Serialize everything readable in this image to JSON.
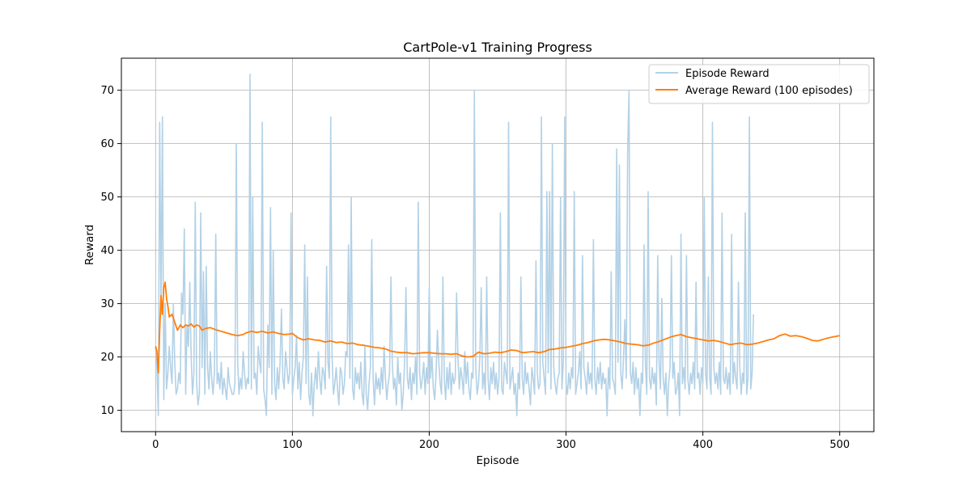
{
  "chart_data": {
    "type": "line",
    "title": "CartPole-v1 Training Progress",
    "xlabel": "Episode",
    "ylabel": "Reward",
    "xlim": [
      -25,
      525
    ],
    "ylim": [
      6,
      76
    ],
    "xticks": [
      0,
      100,
      200,
      300,
      400,
      500
    ],
    "yticks": [
      10,
      20,
      30,
      40,
      50,
      60,
      70
    ],
    "grid": true,
    "legend_position": "top-right",
    "series": [
      {
        "name": "Episode Reward",
        "color": "#b3d1e6",
        "x_start": 0,
        "values": [
          22,
          18,
          9,
          64,
          28,
          65,
          12,
          30,
          14,
          17,
          22,
          18,
          15,
          30,
          19,
          13,
          14,
          17,
          15,
          32,
          28,
          44,
          13,
          26,
          22,
          34,
          20,
          13,
          17,
          49,
          15,
          11,
          13,
          47,
          18,
          36,
          13,
          37,
          18,
          14,
          21,
          16,
          13,
          17,
          43,
          15,
          17,
          14,
          19,
          13,
          16,
          14,
          12,
          18,
          15,
          14,
          13,
          13,
          15,
          60,
          19,
          13,
          16,
          14,
          21,
          17,
          14,
          16,
          15,
          73,
          14,
          50,
          16,
          17,
          13,
          22,
          19,
          17,
          64,
          14,
          12,
          9,
          26,
          18,
          48,
          13,
          40,
          15,
          12,
          18,
          14,
          19,
          29,
          16,
          14,
          21,
          18,
          15,
          17,
          47,
          13,
          16,
          18,
          24,
          14,
          19,
          12,
          17,
          20,
          41,
          15,
          35,
          13,
          11,
          17,
          9,
          15,
          18,
          14,
          21,
          16,
          13,
          18,
          17,
          14,
          37,
          19,
          16,
          65,
          20,
          13,
          15,
          18,
          14,
          11,
          18,
          17,
          13,
          15,
          21,
          20,
          41,
          16,
          50,
          14,
          12,
          18,
          15,
          17,
          14,
          19,
          13,
          11,
          22,
          13,
          10,
          15,
          18,
          42,
          16,
          11,
          17,
          14,
          16,
          13,
          18,
          14,
          22,
          16,
          12,
          15,
          17,
          35,
          19,
          14,
          16,
          11,
          20,
          15,
          17,
          10,
          13,
          19,
          33,
          16,
          14,
          18,
          12,
          17,
          15,
          20,
          13,
          49,
          17,
          14,
          16,
          19,
          13,
          18,
          15,
          33,
          16,
          20,
          14,
          12,
          17,
          25,
          19,
          15,
          13,
          35,
          16,
          12,
          18,
          14,
          19,
          13,
          17,
          15,
          16,
          32,
          20,
          14,
          18,
          16,
          13,
          21,
          15,
          19,
          14,
          12,
          17,
          16,
          70,
          18,
          13,
          15,
          20,
          33,
          14,
          17,
          13,
          35,
          16,
          12,
          18,
          15,
          19,
          14,
          17,
          13,
          16,
          47,
          14,
          13,
          19,
          17,
          15,
          64,
          14,
          16,
          18,
          13,
          15,
          9,
          17,
          14,
          35,
          16,
          13,
          19,
          15,
          17,
          14,
          11,
          18,
          16,
          13,
          38,
          17,
          14,
          15,
          65,
          19,
          16,
          13,
          51,
          17,
          51,
          14,
          60,
          18,
          15,
          13,
          16,
          17,
          50,
          14,
          19,
          65,
          15,
          13,
          17,
          14,
          18,
          16,
          51,
          13,
          15,
          17,
          21,
          14,
          39,
          18,
          16,
          13,
          19,
          15,
          17,
          14,
          42,
          16,
          13,
          18,
          15,
          19,
          14,
          17,
          15,
          16,
          9,
          18,
          14,
          36,
          16,
          15,
          13,
          59,
          19,
          56,
          17,
          14,
          20,
          27,
          16,
          58,
          70,
          17,
          15,
          19,
          13,
          18,
          14,
          16,
          9,
          17,
          15,
          41,
          19,
          13,
          51,
          16,
          14,
          18,
          15,
          17,
          11,
          39,
          19,
          14,
          31,
          16,
          13,
          17,
          9,
          15,
          18,
          39,
          16,
          19,
          13,
          14,
          17,
          9,
          43,
          15,
          18,
          14,
          39,
          16,
          13,
          17,
          15,
          19,
          14,
          34,
          16,
          17,
          13,
          18,
          15,
          50,
          17,
          14,
          35,
          16,
          13,
          64,
          18,
          15,
          17,
          14,
          19,
          13,
          47,
          16,
          15,
          18,
          14,
          17,
          13,
          43,
          15,
          19,
          16,
          14,
          34,
          18,
          13,
          17,
          15,
          47,
          13,
          16,
          65,
          14,
          17,
          28
        ]
      },
      {
        "name": "Average Reward (100 episodes)",
        "color": "#ff7f0e",
        "points": [
          [
            0,
            22
          ],
          [
            1,
            21
          ],
          [
            2,
            17
          ],
          [
            3,
            25
          ],
          [
            4,
            31.5
          ],
          [
            5,
            28
          ],
          [
            6,
            33
          ],
          [
            7,
            34
          ],
          [
            8,
            31
          ],
          [
            9,
            29.5
          ],
          [
            10,
            27.5
          ],
          [
            12,
            28
          ],
          [
            14,
            26.5
          ],
          [
            16,
            25
          ],
          [
            18,
            26
          ],
          [
            20,
            25.5
          ],
          [
            22,
            26
          ],
          [
            24,
            25.8
          ],
          [
            26,
            26.2
          ],
          [
            28,
            25.6
          ],
          [
            30,
            26
          ],
          [
            32,
            25.8
          ],
          [
            34,
            25
          ],
          [
            36,
            25.3
          ],
          [
            40,
            25.5
          ],
          [
            44,
            25.1
          ],
          [
            48,
            24.8
          ],
          [
            52,
            24.5
          ],
          [
            56,
            24.2
          ],
          [
            60,
            24
          ],
          [
            64,
            24.2
          ],
          [
            66,
            24.5
          ],
          [
            70,
            24.8
          ],
          [
            74,
            24.6
          ],
          [
            78,
            24.8
          ],
          [
            82,
            24.5
          ],
          [
            86,
            24.7
          ],
          [
            90,
            24.4
          ],
          [
            94,
            24.2
          ],
          [
            98,
            24.3
          ],
          [
            100,
            24.4
          ],
          [
            104,
            23.6
          ],
          [
            108,
            23.2
          ],
          [
            112,
            23.4
          ],
          [
            116,
            23.2
          ],
          [
            120,
            23.1
          ],
          [
            124,
            22.8
          ],
          [
            128,
            23
          ],
          [
            132,
            22.7
          ],
          [
            136,
            22.8
          ],
          [
            140,
            22.5
          ],
          [
            144,
            22.6
          ],
          [
            148,
            22.3
          ],
          [
            152,
            22.2
          ],
          [
            156,
            22
          ],
          [
            160,
            21.8
          ],
          [
            164,
            21.7
          ],
          [
            168,
            21.5
          ],
          [
            172,
            21.1
          ],
          [
            176,
            20.9
          ],
          [
            180,
            20.8
          ],
          [
            184,
            20.8
          ],
          [
            188,
            20.6
          ],
          [
            192,
            20.7
          ],
          [
            196,
            20.8
          ],
          [
            200,
            20.8
          ],
          [
            204,
            20.7
          ],
          [
            208,
            20.6
          ],
          [
            212,
            20.6
          ],
          [
            216,
            20.5
          ],
          [
            220,
            20.6
          ],
          [
            224,
            20.2
          ],
          [
            228,
            20
          ],
          [
            232,
            20.1
          ],
          [
            236,
            20.9
          ],
          [
            240,
            20.6
          ],
          [
            244,
            20.7
          ],
          [
            248,
            20.9
          ],
          [
            252,
            20.8
          ],
          [
            256,
            21
          ],
          [
            260,
            21.3
          ],
          [
            264,
            21.2
          ],
          [
            268,
            20.8
          ],
          [
            272,
            20.9
          ],
          [
            276,
            21
          ],
          [
            280,
            20.8
          ],
          [
            284,
            21
          ],
          [
            288,
            21.4
          ],
          [
            292,
            21.5
          ],
          [
            296,
            21.7
          ],
          [
            300,
            21.8
          ],
          [
            304,
            22
          ],
          [
            308,
            22.2
          ],
          [
            312,
            22.5
          ],
          [
            316,
            22.7
          ],
          [
            320,
            23
          ],
          [
            324,
            23.2
          ],
          [
            328,
            23.3
          ],
          [
            332,
            23.2
          ],
          [
            336,
            23
          ],
          [
            340,
            22.8
          ],
          [
            344,
            22.5
          ],
          [
            348,
            22.4
          ],
          [
            352,
            22.3
          ],
          [
            356,
            22.1
          ],
          [
            360,
            22.2
          ],
          [
            364,
            22.6
          ],
          [
            368,
            22.9
          ],
          [
            372,
            23.3
          ],
          [
            376,
            23.7
          ],
          [
            380,
            24
          ],
          [
            384,
            24.2
          ],
          [
            388,
            23.8
          ],
          [
            392,
            23.6
          ],
          [
            396,
            23.4
          ],
          [
            400,
            23.2
          ],
          [
            404,
            23
          ],
          [
            408,
            23.1
          ],
          [
            412,
            22.9
          ],
          [
            416,
            22.6
          ],
          [
            420,
            22.3
          ],
          [
            424,
            22.5
          ],
          [
            428,
            22.6
          ],
          [
            432,
            22.3
          ],
          [
            436,
            22.4
          ],
          [
            440,
            22.6
          ],
          [
            444,
            22.9
          ],
          [
            448,
            23.2
          ],
          [
            452,
            23.4
          ],
          [
            456,
            24
          ],
          [
            460,
            24.3
          ],
          [
            464,
            23.9
          ],
          [
            468,
            24
          ],
          [
            472,
            23.8
          ],
          [
            476,
            23.5
          ],
          [
            480,
            23.1
          ],
          [
            484,
            23
          ],
          [
            488,
            23.3
          ],
          [
            492,
            23.6
          ],
          [
            496,
            23.8
          ],
          [
            500,
            24
          ]
        ]
      }
    ]
  }
}
